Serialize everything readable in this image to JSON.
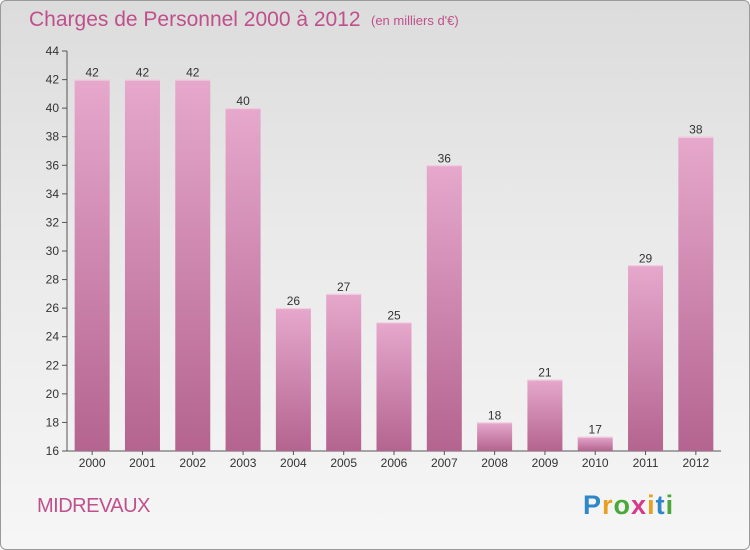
{
  "header": {
    "title": "Charges de Personnel 2000 à 2012",
    "subtitle": "(en milliers d'€)"
  },
  "footer": {
    "place": "MIDREVAUX",
    "logo_letters": [
      "P",
      "r",
      "o",
      "x",
      "i",
      "t",
      "i"
    ],
    "logo_colors": [
      "#2f86c8",
      "#e8a020",
      "#4aa83a",
      "#d83a8a",
      "#e8a020",
      "#2f86c8",
      "#4aa83a"
    ]
  },
  "colors": {
    "bar_light": "#e6a8cc",
    "bar_dark": "#b4648f",
    "title": "#c0508c"
  },
  "chart_data": {
    "type": "bar",
    "categories": [
      "2000",
      "2001",
      "2002",
      "2003",
      "2004",
      "2005",
      "2006",
      "2007",
      "2008",
      "2009",
      "2010",
      "2011",
      "2012"
    ],
    "values": [
      42,
      42,
      42,
      40,
      26,
      27,
      25,
      36,
      18,
      21,
      17,
      29,
      38
    ],
    "value_labels": [
      "42",
      "42",
      "42",
      "40",
      "26",
      "27",
      "25",
      "36",
      "18",
      "21",
      "17",
      "29",
      "38"
    ],
    "yticks": [
      "16",
      "18",
      "20",
      "22",
      "24",
      "26",
      "28",
      "30",
      "32",
      "34",
      "36",
      "38",
      "40",
      "42",
      "44"
    ],
    "ylim": [
      16,
      44
    ],
    "grid": false,
    "legend": "none"
  }
}
